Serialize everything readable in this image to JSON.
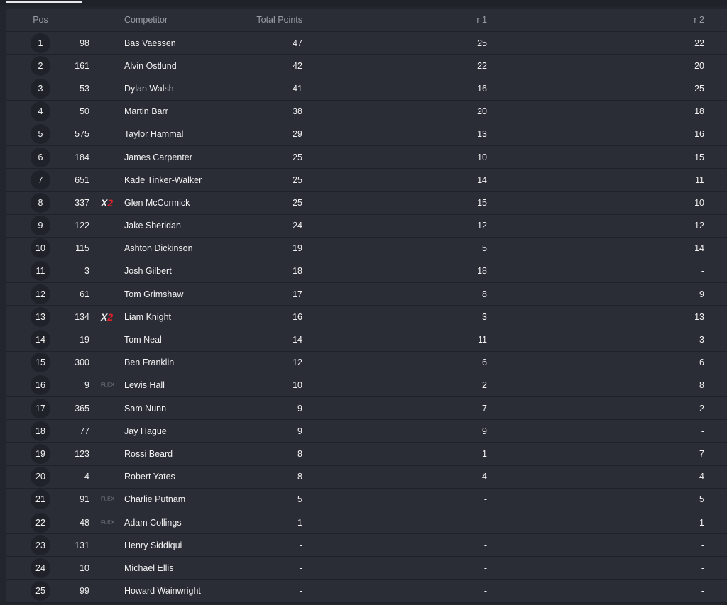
{
  "header": {
    "pos": "Pos",
    "competitor": "Competitor",
    "total": "Total Points",
    "r1": "r 1",
    "r2": "r 2"
  },
  "badges": {
    "x2_prefix": "X",
    "x2_suffix": "2",
    "flex": "FLEX"
  },
  "colors": {
    "accent_red": "#e0202a",
    "row_bg": "#2a2d36"
  },
  "rows": [
    {
      "pos": "1",
      "num": "98",
      "badge": "",
      "name": "Bas Vaessen",
      "total": "47",
      "r1": "25",
      "r2": "22"
    },
    {
      "pos": "2",
      "num": "161",
      "badge": "",
      "name": "Alvin Ostlund",
      "total": "42",
      "r1": "22",
      "r2": "20"
    },
    {
      "pos": "3",
      "num": "53",
      "badge": "",
      "name": "Dylan Walsh",
      "total": "41",
      "r1": "16",
      "r2": "25"
    },
    {
      "pos": "4",
      "num": "50",
      "badge": "",
      "name": "Martin Barr",
      "total": "38",
      "r1": "20",
      "r2": "18"
    },
    {
      "pos": "5",
      "num": "575",
      "badge": "",
      "name": "Taylor Hammal",
      "total": "29",
      "r1": "13",
      "r2": "16"
    },
    {
      "pos": "6",
      "num": "184",
      "badge": "",
      "name": "James Carpenter",
      "total": "25",
      "r1": "10",
      "r2": "15"
    },
    {
      "pos": "7",
      "num": "651",
      "badge": "",
      "name": "Kade Tinker-Walker",
      "total": "25",
      "r1": "14",
      "r2": "11"
    },
    {
      "pos": "8",
      "num": "337",
      "badge": "x2",
      "name": "Glen McCormick",
      "total": "25",
      "r1": "15",
      "r2": "10"
    },
    {
      "pos": "9",
      "num": "122",
      "badge": "",
      "name": "Jake Sheridan",
      "total": "24",
      "r1": "12",
      "r2": "12"
    },
    {
      "pos": "10",
      "num": "115",
      "badge": "",
      "name": "Ashton Dickinson",
      "total": "19",
      "r1": "5",
      "r2": "14"
    },
    {
      "pos": "11",
      "num": "3",
      "badge": "",
      "name": "Josh Gilbert",
      "total": "18",
      "r1": "18",
      "r2": "-"
    },
    {
      "pos": "12",
      "num": "61",
      "badge": "",
      "name": "Tom Grimshaw",
      "total": "17",
      "r1": "8",
      "r2": "9"
    },
    {
      "pos": "13",
      "num": "134",
      "badge": "x2",
      "name": "Liam Knight",
      "total": "16",
      "r1": "3",
      "r2": "13"
    },
    {
      "pos": "14",
      "num": "19",
      "badge": "",
      "name": "Tom Neal",
      "total": "14",
      "r1": "11",
      "r2": "3"
    },
    {
      "pos": "15",
      "num": "300",
      "badge": "",
      "name": "Ben Franklin",
      "total": "12",
      "r1": "6",
      "r2": "6"
    },
    {
      "pos": "16",
      "num": "9",
      "badge": "flex",
      "name": "Lewis Hall",
      "total": "10",
      "r1": "2",
      "r2": "8"
    },
    {
      "pos": "17",
      "num": "365",
      "badge": "",
      "name": "Sam Nunn",
      "total": "9",
      "r1": "7",
      "r2": "2"
    },
    {
      "pos": "18",
      "num": "77",
      "badge": "",
      "name": "Jay Hague",
      "total": "9",
      "r1": "9",
      "r2": "-"
    },
    {
      "pos": "19",
      "num": "123",
      "badge": "",
      "name": "Rossi Beard",
      "total": "8",
      "r1": "1",
      "r2": "7"
    },
    {
      "pos": "20",
      "num": "4",
      "badge": "",
      "name": "Robert Yates",
      "total": "8",
      "r1": "4",
      "r2": "4"
    },
    {
      "pos": "21",
      "num": "91",
      "badge": "flex",
      "name": "Charlie Putnam",
      "total": "5",
      "r1": "-",
      "r2": "5"
    },
    {
      "pos": "22",
      "num": "48",
      "badge": "flex",
      "name": "Adam Collings",
      "total": "1",
      "r1": "-",
      "r2": "1"
    },
    {
      "pos": "23",
      "num": "131",
      "badge": "",
      "name": "Henry Siddiqui",
      "total": "-",
      "r1": "-",
      "r2": "-"
    },
    {
      "pos": "24",
      "num": "10",
      "badge": "",
      "name": "Michael Ellis",
      "total": "-",
      "r1": "-",
      "r2": "-"
    },
    {
      "pos": "25",
      "num": "99",
      "badge": "",
      "name": "Howard Wainwright",
      "total": "-",
      "r1": "-",
      "r2": "-"
    }
  ]
}
